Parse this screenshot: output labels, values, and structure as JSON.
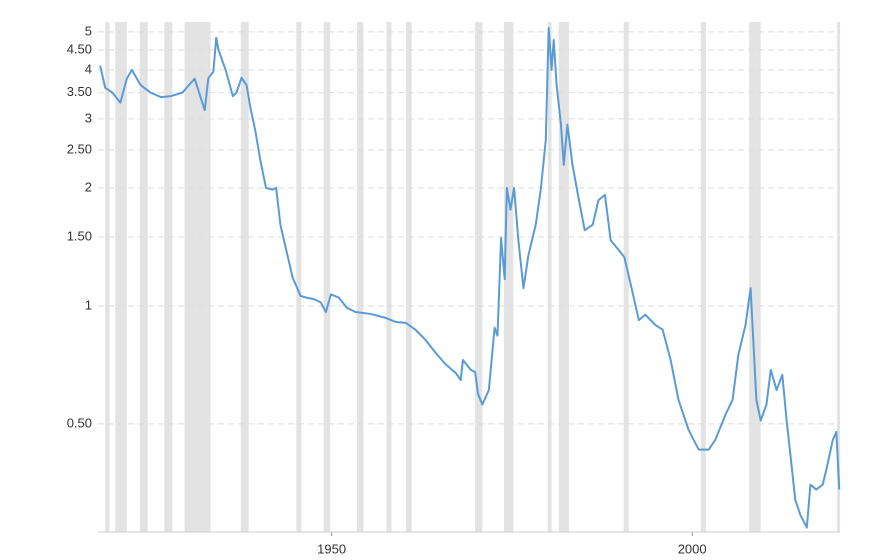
{
  "chart_data": {
    "type": "line",
    "log_scale": true,
    "grid": true,
    "color": "#5b9bd5",
    "shade_color": "#e3e3e3",
    "x": [
      1917.9,
      1918.6,
      1919.6,
      1920.7,
      1921.6,
      1922.3,
      1923.5,
      1924.9,
      1926.3,
      1927.7,
      1929.3,
      1931,
      1932.4,
      1932.9,
      1933.6,
      1934,
      1934.3,
      1935.3,
      1936.3,
      1936.8,
      1937.5,
      1938.2,
      1938.8,
      1939.4,
      1940.1,
      1940.9,
      1941.8,
      1942.3,
      1942.9,
      1943.7,
      1944.6,
      1945.7,
      1946.5,
      1947.6,
      1948.5,
      1949.2,
      1949.9,
      1951,
      1952.1,
      1953.3,
      1955.4,
      1957.5,
      1958.9,
      1960.3,
      1961.6,
      1963,
      1964.4,
      1965.8,
      1967.2,
      1967.9,
      1968.2,
      1969.3,
      1969.9,
      1970.3,
      1970.9,
      1971.8,
      1972.6,
      1973,
      1973.5,
      1974,
      1974.3,
      1974.8,
      1975.3,
      1975.9,
      1976.6,
      1977.3,
      1978.3,
      1979,
      1979.7,
      1980.1,
      1980.5,
      1980.8,
      1981.2,
      1981.8,
      1982.2,
      1982.7,
      1983.4,
      1984.3,
      1985.1,
      1986.2,
      1987,
      1987.9,
      1988.7,
      1989.8,
      1990.6,
      1991.5,
      1992.6,
      1993.5,
      1994.9,
      1995.9,
      1997,
      1998.1,
      1999.5,
      2000.9,
      2002.3,
      2003.2,
      2004.6,
      2005.6,
      2006.4,
      2007.4,
      2008.1,
      2008.4,
      2008.9,
      2009.5,
      2010.3,
      2010.9,
      2011.7,
      2012.5,
      2013.1,
      2013.7,
      2014.3,
      2015,
      2015.9,
      2016.4,
      2017.2,
      2018.1,
      2018.6,
      2019.5,
      2020,
      2020.4
    ],
    "values": [
      4.1,
      3.6,
      3.5,
      3.3,
      3.8,
      4.0,
      3.66,
      3.5,
      3.41,
      3.43,
      3.5,
      3.8,
      3.16,
      3.81,
      3.96,
      4.83,
      4.5,
      4.0,
      3.43,
      3.5,
      3.82,
      3.66,
      3.16,
      2.81,
      2.36,
      2.0,
      1.98,
      2.0,
      1.61,
      1.39,
      1.18,
      1.06,
      1.05,
      1.04,
      1.02,
      0.965,
      1.07,
      1.05,
      0.99,
      0.965,
      0.954,
      0.932,
      0.91,
      0.905,
      0.87,
      0.82,
      0.76,
      0.71,
      0.675,
      0.647,
      0.728,
      0.687,
      0.678,
      0.597,
      0.56,
      0.61,
      0.88,
      0.84,
      1.49,
      1.17,
      2.0,
      1.76,
      2.0,
      1.47,
      1.11,
      1.35,
      1.61,
      1.98,
      2.65,
      5.12,
      4.0,
      4.77,
      3.66,
      2.9,
      2.29,
      2.9,
      2.29,
      1.86,
      1.56,
      1.61,
      1.86,
      1.92,
      1.47,
      1.39,
      1.33,
      1.13,
      0.92,
      0.95,
      0.894,
      0.87,
      0.73,
      0.576,
      0.483,
      0.43,
      0.43,
      0.455,
      0.527,
      0.576,
      0.75,
      0.894,
      1.11,
      0.87,
      0.576,
      0.51,
      0.56,
      0.687,
      0.61,
      0.667,
      0.51,
      0.405,
      0.32,
      0.293,
      0.272,
      0.35,
      0.34,
      0.35,
      0.382,
      0.455,
      0.477,
      0.34
    ],
    "xlim": [
      1917.6,
      2020.5
    ],
    "xticks": [
      1950,
      2000
    ],
    "ylim": [
      0.265,
      5.3
    ],
    "yticks": [
      {
        "value": 0.5,
        "label": "0.50"
      },
      1,
      {
        "value": 1.5,
        "label": "1.50"
      },
      2,
      {
        "value": 2.5,
        "label": "2.50"
      },
      3,
      {
        "value": 3.5,
        "label": "3.50"
      },
      4,
      {
        "value": 4.5,
        "label": "4.50"
      },
      5
    ],
    "shaded_periods": [
      [
        1918.6,
        1919.2
      ],
      [
        1920.0,
        1921.6
      ],
      [
        1923.4,
        1924.5
      ],
      [
        1926.8,
        1927.9
      ],
      [
        1929.6,
        1933.2
      ],
      [
        1937.4,
        1938.5
      ],
      [
        1945.1,
        1945.8
      ],
      [
        1948.9,
        1949.8
      ],
      [
        1953.5,
        1954.4
      ],
      [
        1957.6,
        1958.3
      ],
      [
        1960.3,
        1961.1
      ],
      [
        1969.9,
        1970.9
      ],
      [
        1973.9,
        1975.2
      ],
      [
        1980.0,
        1980.5
      ],
      [
        1981.5,
        1982.9
      ],
      [
        1990.5,
        1991.2
      ],
      [
        2001.2,
        2001.9
      ],
      [
        2007.9,
        2009.5
      ],
      [
        2020.1,
        2020.3
      ]
    ]
  }
}
